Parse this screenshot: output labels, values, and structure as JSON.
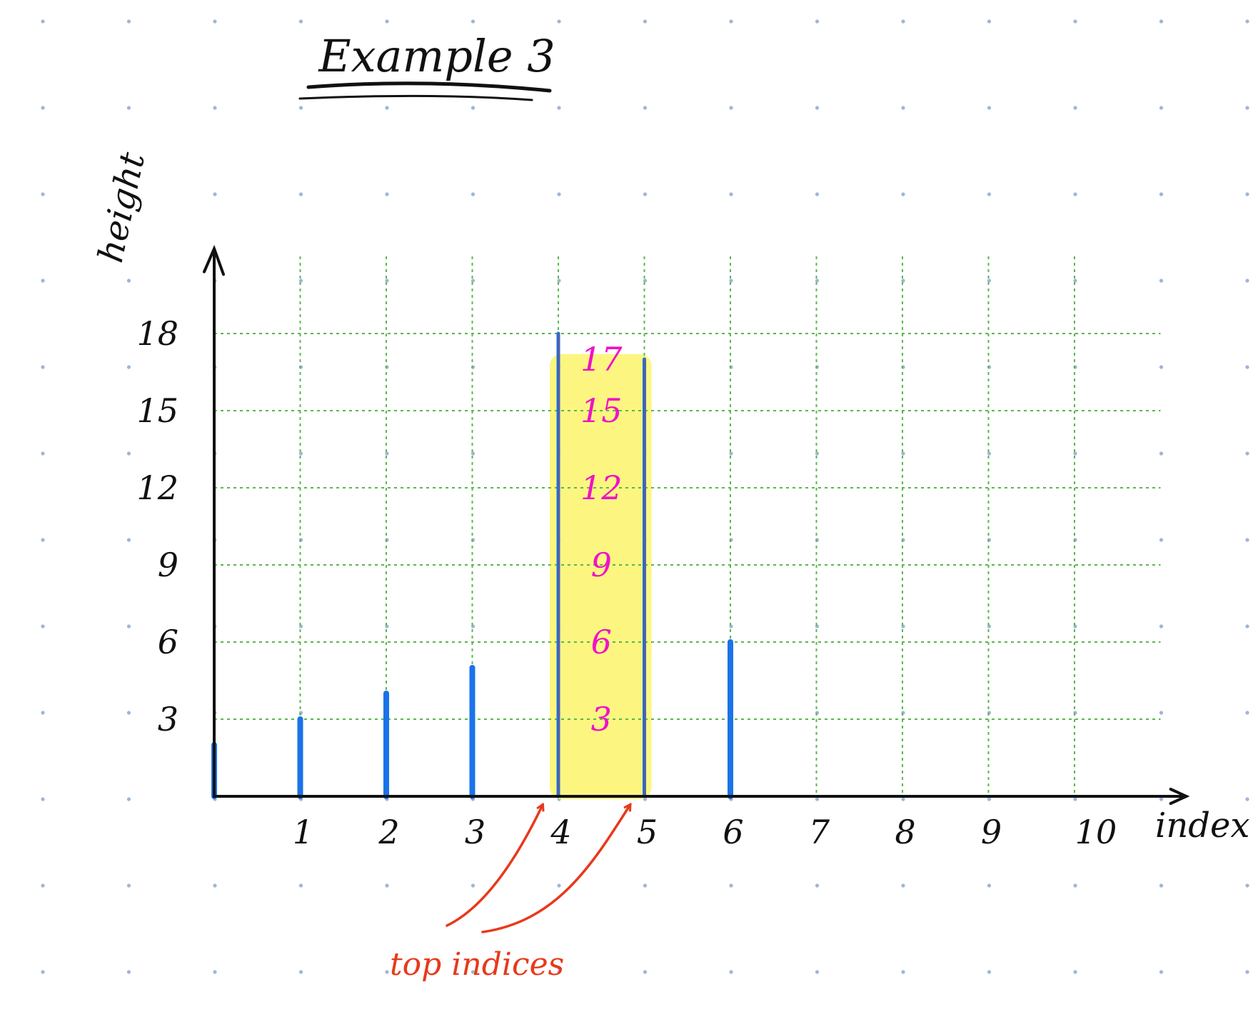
{
  "title": "Example 3",
  "annotation": "top indices",
  "colors": {
    "bar": "#1a73e8",
    "highlight": "#fbf56b",
    "inner_labels": "#f012c8",
    "annotation": "#e8391b",
    "grid": "#58b84a",
    "dots": "#9fb5d6",
    "axis": "#111111"
  },
  "chart_data": {
    "type": "bar",
    "xlabel": "index",
    "ylabel": "height",
    "x": [
      0,
      1,
      2,
      3,
      4,
      5,
      6,
      7,
      8,
      9,
      10
    ],
    "values": [
      2,
      3,
      4,
      5,
      18,
      17,
      6,
      0,
      0,
      0,
      0
    ],
    "x_ticks": [
      "1",
      "2",
      "3",
      "4",
      "5",
      "6",
      "7",
      "8",
      "9",
      "10"
    ],
    "y_ticks": [
      "3",
      "6",
      "9",
      "12",
      "15",
      "18"
    ],
    "y_tick_values": [
      3,
      6,
      9,
      12,
      15,
      18
    ],
    "ylim": [
      0,
      18
    ],
    "grid": true,
    "highlight": {
      "from": 4,
      "to": 5
    },
    "highlight_labels": [
      "17",
      "15",
      "12",
      "9",
      "6",
      "3"
    ],
    "highlight_label_values": [
      17,
      15,
      12,
      9,
      6,
      3
    ],
    "top_indices": [
      4,
      5
    ]
  }
}
